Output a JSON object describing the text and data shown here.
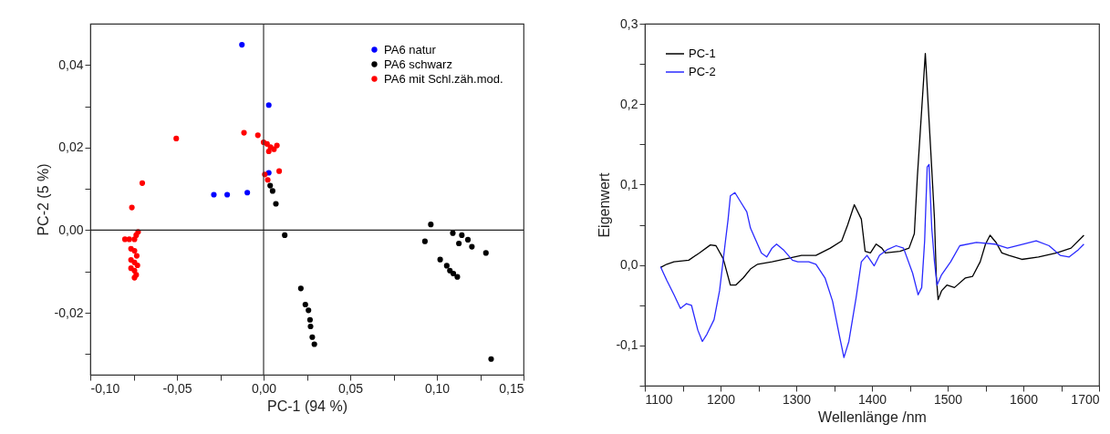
{
  "chart_data": [
    {
      "type": "scatter",
      "xlabel": "PC-1 (94 %)",
      "ylabel": "PC-2 (5 %)",
      "legend": "top right",
      "grid": false,
      "marker": "circle",
      "xlim": [
        -0.1,
        0.15
      ],
      "ylim": [
        -0.035,
        0.05
      ],
      "xticks": [
        {
          "value": -0.1,
          "label": "-0,10"
        },
        {
          "value": -0.075,
          "label": null
        },
        {
          "value": -0.05,
          "label": "-0,05"
        },
        {
          "value": -0.025,
          "label": null
        },
        {
          "value": 0,
          "label": "0,00"
        },
        {
          "value": 0.025,
          "label": null
        },
        {
          "value": 0.05,
          "label": "0,05"
        },
        {
          "value": 0.075,
          "label": null
        },
        {
          "value": 0.1,
          "label": "0,10"
        },
        {
          "value": 0.125,
          "label": null
        },
        {
          "value": 0.15,
          "label": "0,15"
        }
      ],
      "yticks": [
        {
          "value": -0.03,
          "label": null
        },
        {
          "value": -0.02,
          "label": "-0,02"
        },
        {
          "value": -0.01,
          "label": null
        },
        {
          "value": 0,
          "label": "0,00"
        },
        {
          "value": 0.01,
          "label": null
        },
        {
          "value": 0.02,
          "label": "0,02"
        },
        {
          "value": 0.03,
          "label": null
        },
        {
          "value": 0.04,
          "label": "0,04"
        }
      ],
      "ref_lines": [
        {
          "axis": "x",
          "value": 0,
          "color": "#333333"
        },
        {
          "axis": "y",
          "value": 0,
          "color": "#222222"
        }
      ],
      "series": [
        {
          "name": "PA6 natur",
          "color": "#0000ff",
          "x": [
            -0.0125,
            0.003,
            0.003,
            -0.0287,
            -0.021,
            -0.0094
          ],
          "values": [
            0.0449,
            0.0303,
            0.0139,
            0.0086,
            0.0086,
            0.0091
          ]
        },
        {
          "name": "PA6 schwarz",
          "color": "#000000",
          "x": [
            0.0038,
            0.0052,
            0.0071,
            0.0122,
            0.0215,
            0.0241,
            0.0259,
            0.0268,
            0.0271,
            0.0281,
            0.0293,
            0.0965,
            0.0931,
            0.1019,
            0.1057,
            0.1075,
            0.1095,
            0.1118,
            0.1092,
            0.1144,
            0.1127,
            0.1179,
            0.1202,
            0.1283,
            0.1313
          ],
          "values": [
            0.0108,
            0.0095,
            0.0064,
            -0.0012,
            -0.0141,
            -0.018,
            -0.0194,
            -0.0217,
            -0.0233,
            -0.0259,
            -0.0276,
            0.0014,
            -0.0027,
            -0.0071,
            -0.0086,
            -0.0098,
            -0.0105,
            -0.0113,
            -0.0007,
            -0.0012,
            -0.0032,
            -0.0023,
            -0.004,
            -0.0055,
            -0.0312
          ]
        },
        {
          "name": "PA6 mit Schl.zäh.mod.",
          "color": "#ff0000",
          "x": [
            -0.0504,
            -0.0113,
            -0.0033,
            0.0,
            0.002,
            0.004,
            0.006,
            0.0077,
            0.003,
            0.009,
            0.0007,
            0.0024,
            -0.07,
            -0.076,
            -0.0724,
            -0.0735,
            -0.0745,
            -0.0775,
            -0.08,
            -0.0765,
            -0.0745,
            -0.0732,
            -0.0765,
            -0.0745,
            -0.0728,
            -0.0765,
            -0.0745,
            -0.0735,
            -0.0745
          ],
          "values": [
            0.0222,
            0.0236,
            0.023,
            0.0213,
            0.0209,
            0.0201,
            0.0196,
            0.0205,
            0.0191,
            0.0143,
            0.0135,
            0.0122,
            0.0114,
            0.0055,
            -0.0004,
            -0.0012,
            -0.0022,
            -0.0022,
            -0.0022,
            -0.0045,
            -0.005,
            -0.0062,
            -0.0072,
            -0.0078,
            -0.0085,
            -0.0092,
            -0.0098,
            -0.0108,
            -0.0115
          ]
        }
      ]
    },
    {
      "type": "line",
      "xlabel": "Wellenlänge /nm",
      "ylabel": "Eigenwert",
      "legend": "top left",
      "grid": false,
      "line_style": "solid",
      "xlim": [
        1100,
        1700
      ],
      "ylim": [
        -0.15,
        0.3
      ],
      "xticks": [
        1100,
        {
          "value": 1150,
          "label": null
        },
        1200,
        {
          "value": 1250,
          "label": null
        },
        1300,
        {
          "value": 1350,
          "label": null
        },
        1400,
        {
          "value": 1450,
          "label": null
        },
        1500,
        {
          "value": 1550,
          "label": null
        },
        1600,
        {
          "value": 1650,
          "label": null
        },
        1700
      ],
      "yticks": [
        {
          "value": -0.15,
          "label": null
        },
        {
          "value": -0.1,
          "label": "-0,1"
        },
        {
          "value": -0.05,
          "label": null
        },
        {
          "value": 0,
          "label": "0,0"
        },
        {
          "value": 0.05,
          "label": null
        },
        {
          "value": 0.1,
          "label": "0,1"
        },
        {
          "value": 0.15,
          "label": null
        },
        {
          "value": 0.2,
          "label": "0,2"
        },
        {
          "value": 0.25,
          "label": null
        },
        {
          "value": 0.3,
          "label": "0,3"
        }
      ],
      "series": [
        {
          "name": "PC-1",
          "color": "#000000",
          "x": [
            1120.7,
            1129,
            1138.5,
            1158,
            1172,
            1186.6,
            1194,
            1203.5,
            1213,
            1220,
            1230,
            1239.5,
            1249,
            1268,
            1287.7,
            1307,
            1326,
            1345,
            1360,
            1368,
            1376.7,
            1386,
            1391,
            1398,
            1405.6,
            1413,
            1417.6,
            1437,
            1449,
            1456,
            1460,
            1470.5,
            1477.8,
            1482.6,
            1485,
            1487.4,
            1492,
            1499,
            1509,
            1523.5,
            1533,
            1543,
            1550,
            1556,
            1564,
            1571.6,
            1581,
            1598,
            1620,
            1644,
            1663,
            1680
          ],
          "values": [
            -0.003,
            0.001,
            0.004,
            0.006,
            0.015,
            0.025,
            0.024,
            0.008,
            -0.025,
            -0.025,
            -0.016,
            -0.005,
            0.001,
            0.004,
            0.008,
            0.012,
            0.012,
            0.021,
            0.03,
            0.05,
            0.075,
            0.057,
            0.017,
            0.015,
            0.026,
            0.021,
            0.015,
            0.017,
            0.021,
            0.039,
            0.11,
            0.263,
            0.14,
            0.057,
            -0.014,
            -0.043,
            -0.032,
            -0.025,
            -0.028,
            -0.016,
            -0.014,
            0.004,
            0.026,
            0.037,
            0.028,
            0.015,
            0.012,
            0.007,
            0.01,
            0.015,
            0.021,
            0.037
          ]
        },
        {
          "name": "PC-2",
          "color": "#2a2aff",
          "x": [
            1120.7,
            1129,
            1138.5,
            1147,
            1155,
            1161.6,
            1170,
            1176,
            1182,
            1191.4,
            1198.7,
            1206,
            1210,
            1213,
            1219,
            1227.5,
            1234.7,
            1239.5,
            1247,
            1254,
            1261,
            1268,
            1274,
            1283,
            1295,
            1302,
            1316.5,
            1326,
            1338,
            1348,
            1357.5,
            1363,
            1369.5,
            1379,
            1386,
            1393.5,
            1403,
            1410,
            1420,
            1432,
            1441.7,
            1453.7,
            1461,
            1465.7,
            1469.6,
            1473,
            1475.4,
            1479,
            1482.6,
            1486,
            1492,
            1504,
            1516,
            1538,
            1562,
            1579,
            1600.5,
            1617,
            1634,
            1648.6,
            1660.6,
            1672.6,
            1680
          ],
          "values": [
            -0.002,
            -0.019,
            -0.037,
            -0.054,
            -0.048,
            -0.05,
            -0.081,
            -0.095,
            -0.086,
            -0.068,
            -0.032,
            0.026,
            0.057,
            0.086,
            0.09,
            0.077,
            0.066,
            0.046,
            0.03,
            0.015,
            0.01,
            0.021,
            0.026,
            0.019,
            0.006,
            0.004,
            0.004,
            0.001,
            -0.016,
            -0.045,
            -0.09,
            -0.115,
            -0.095,
            -0.041,
            0.004,
            0.012,
            -0.001,
            0.012,
            0.019,
            0.024,
            0.021,
            -0.01,
            -0.037,
            -0.028,
            0.03,
            0.122,
            0.125,
            0.046,
            0.004,
            -0.025,
            -0.012,
            0.004,
            0.024,
            0.028,
            0.026,
            0.021,
            0.026,
            0.03,
            0.024,
            0.012,
            0.01,
            0.019,
            0.026
          ]
        }
      ]
    }
  ]
}
